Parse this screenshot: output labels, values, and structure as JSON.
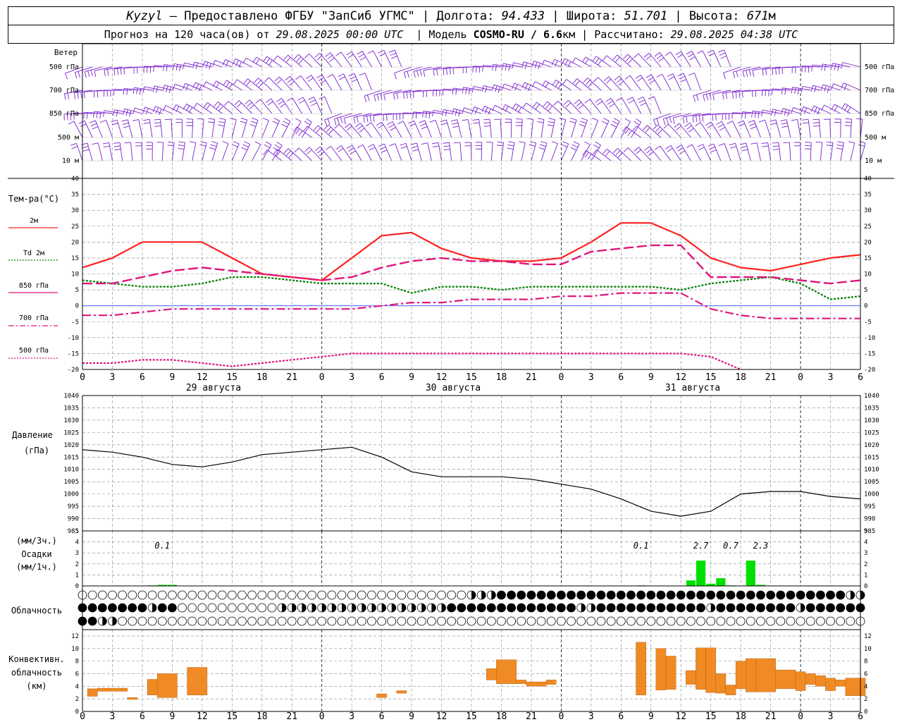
{
  "header": {
    "station": "Kyzyl",
    "sep": "–",
    "provider": "Предоставлено ФГБУ \"ЗапСиб УГМС\"",
    "lon_label": "Долгота:",
    "lon": "94.433",
    "lat_label": "Широта:",
    "lat": "51.701",
    "alt_label": "Высота:",
    "alt": "671",
    "alt_unit": "м",
    "forecast_label": "Прогноз на 120 часа(ов) от",
    "forecast_from": "29.08.2025 00:00 UTC",
    "model_label": "Модель",
    "model": "COSMO-RU / 6.6",
    "model_unit": "км",
    "calc_label": "Рассчитано:",
    "calc_time": "29.08.2025 04:38 UTC"
  },
  "wind_panel": {
    "title": "Ветер",
    "levels": [
      "500 гПа",
      "700 гПа",
      "850 гПа",
      "500 м",
      "10 м"
    ]
  },
  "temp_panel": {
    "title": "Тем-ра(°C)",
    "legend": [
      {
        "label": "2м",
        "color": "#ff2020",
        "style": "solid"
      },
      {
        "label": "Td  2м",
        "color": "#008000",
        "style": "dotted"
      },
      {
        "label": "850 гПа",
        "color": "#e0157e",
        "style": "dash"
      },
      {
        "label": "700 гПа",
        "color": "#e0157e",
        "style": "dashdot"
      },
      {
        "label": "500 гПа",
        "color": "#e0157e",
        "style": "dot"
      }
    ]
  },
  "pressure_panel": {
    "title": "Давление",
    "unit": "(гПа)"
  },
  "precip_panel": {
    "unit1": "(мм/3ч.)",
    "title": "Осадки",
    "unit2": "(мм/1ч.)"
  },
  "cloud_panel": {
    "title": "Облачность"
  },
  "conv_panel": {
    "title1": "Конвективн.",
    "title2": "облачность",
    "unit": "(км)"
  },
  "day_labels": [
    "29 августа",
    "30 августа",
    "31 августа"
  ],
  "x_tick_labels": [
    "0",
    "3",
    "6",
    "9",
    "12",
    "15",
    "18",
    "21",
    "0",
    "3",
    "6",
    "9",
    "12",
    "15",
    "18",
    "21",
    "0",
    "3",
    "6",
    "9",
    "12",
    "15",
    "18",
    "21",
    "0",
    "3",
    "6"
  ],
  "colors": {
    "wind": "#7a1fd0",
    "temp2m": "#ff2020",
    "dew": "#008000",
    "levels": "#e0157e",
    "precip": "#00e000",
    "conv": "#f08a24",
    "zero": "#3050ff"
  },
  "chart_data": [
    {
      "type": "line",
      "panel": "temperature",
      "ylim": [
        -20,
        40
      ],
      "x": [
        0,
        3,
        6,
        9,
        12,
        15,
        18,
        21,
        24,
        27,
        30,
        33,
        36,
        39,
        42,
        45,
        48,
        51,
        54,
        57,
        60,
        63,
        66,
        69,
        72,
        75,
        78
      ],
      "series": [
        {
          "name": "2м",
          "values": [
            12,
            15,
            20,
            20,
            20,
            15,
            10,
            9,
            8,
            15,
            22,
            23,
            18,
            15,
            14,
            14,
            15,
            20,
            26,
            26,
            22,
            15,
            12,
            11,
            13,
            15,
            16
          ]
        },
        {
          "name": "Td  2м",
          "values": [
            8,
            7,
            6,
            6,
            7,
            9,
            9,
            8,
            7,
            7,
            7,
            4,
            6,
            6,
            5,
            6,
            6,
            6,
            6,
            6,
            5,
            7,
            8,
            9,
            7,
            2,
            3
          ]
        },
        {
          "name": "850 гПа",
          "values": [
            7,
            7,
            9,
            11,
            12,
            11,
            10,
            9,
            8,
            9,
            12,
            14,
            15,
            14,
            14,
            13,
            13,
            17,
            18,
            19,
            19,
            9,
            9,
            9,
            8,
            7,
            8
          ]
        },
        {
          "name": "700 гПа",
          "values": [
            -3,
            -3,
            -2,
            -1,
            -1,
            -1,
            -1,
            -1,
            -1,
            -1,
            0,
            1,
            1,
            2,
            2,
            2,
            3,
            3,
            4,
            4,
            4,
            -1,
            -3,
            -4,
            -4,
            -4,
            -4
          ]
        },
        {
          "name": "500 гПа",
          "values": [
            -18,
            -18,
            -17,
            -17,
            -18,
            -19,
            -18,
            -17,
            -16,
            -15,
            -15,
            -15,
            -15,
            -15,
            -15,
            -15,
            -15,
            -15,
            -15,
            -15,
            -15,
            -16,
            -20,
            null,
            null,
            null,
            null
          ]
        }
      ]
    },
    {
      "type": "line",
      "panel": "pressure",
      "ylim": [
        985,
        1040
      ],
      "x": [
        0,
        3,
        6,
        9,
        12,
        15,
        18,
        21,
        24,
        27,
        30,
        33,
        36,
        39,
        42,
        45,
        48,
        51,
        54,
        57,
        60,
        63,
        66,
        69,
        72,
        75,
        78
      ],
      "series": [
        {
          "name": "",
          "values": [
            1018,
            1017,
            1015,
            1012,
            1011,
            1013,
            1016,
            1017,
            1018,
            1019,
            1015,
            1009,
            1007,
            1007,
            1007,
            1006,
            1004,
            1002,
            998,
            993,
            991,
            993,
            1000,
            1001,
            1001,
            999,
            998
          ]
        }
      ]
    },
    {
      "type": "bar",
      "panel": "precipitation",
      "ylim": [
        0,
        5
      ],
      "annotations": [
        {
          "x": 8,
          "text": "0.1"
        },
        {
          "x": 56,
          "text": "0.1"
        },
        {
          "x": 62,
          "text": "2.7"
        },
        {
          "x": 65,
          "text": "0.7"
        },
        {
          "x": 68,
          "text": "2.3"
        }
      ],
      "bars": [
        {
          "x": 7,
          "value": 0.05
        },
        {
          "x": 8,
          "value": 0.1
        },
        {
          "x": 9,
          "value": 0.1
        },
        {
          "x": 56,
          "value": 0.05
        },
        {
          "x": 61,
          "value": 0.5
        },
        {
          "x": 62,
          "value": 2.3
        },
        {
          "x": 63,
          "value": 0.2
        },
        {
          "x": 64,
          "value": 0.7
        },
        {
          "x": 65,
          "value": 0.05
        },
        {
          "x": 67,
          "value": 2.3
        },
        {
          "x": 68,
          "value": 0.1
        }
      ]
    },
    {
      "type": "bar",
      "panel": "convective-cloud",
      "ylim": [
        0,
        13
      ],
      "bars": [
        {
          "x0": 0.5,
          "x1": 1.5,
          "lo": 2.4,
          "hi": 3.6
        },
        {
          "x0": 1.5,
          "x1": 4.5,
          "lo": 3.2,
          "hi": 3.7
        },
        {
          "x0": 4.5,
          "x1": 5.5,
          "lo": 1.9,
          "hi": 2.2
        },
        {
          "x0": 6.5,
          "x1": 7.5,
          "lo": 2.6,
          "hi": 5.1
        },
        {
          "x0": 7.5,
          "x1": 9.5,
          "lo": 2.2,
          "hi": 6.0
        },
        {
          "x0": 10.5,
          "x1": 12.5,
          "lo": 2.6,
          "hi": 7.0
        },
        {
          "x0": 29.5,
          "x1": 30.5,
          "lo": 2.2,
          "hi": 2.8
        },
        {
          "x0": 31.5,
          "x1": 32.5,
          "lo": 2.9,
          "hi": 3.3
        },
        {
          "x0": 40.5,
          "x1": 41.5,
          "lo": 5.0,
          "hi": 6.8
        },
        {
          "x0": 41.5,
          "x1": 43.5,
          "lo": 4.4,
          "hi": 8.2
        },
        {
          "x0": 43.5,
          "x1": 44.5,
          "lo": 4.4,
          "hi": 5.0
        },
        {
          "x0": 44.5,
          "x1": 46.5,
          "lo": 4.0,
          "hi": 4.7
        },
        {
          "x0": 46.5,
          "x1": 47.5,
          "lo": 4.3,
          "hi": 5.0
        },
        {
          "x0": 55.5,
          "x1": 56.5,
          "lo": 2.6,
          "hi": 11.0
        },
        {
          "x0": 57.5,
          "x1": 58.5,
          "lo": 3.4,
          "hi": 10.0
        },
        {
          "x0": 58.5,
          "x1": 59.5,
          "lo": 3.5,
          "hi": 8.8
        },
        {
          "x0": 60.5,
          "x1": 61.5,
          "lo": 4.3,
          "hi": 6.5
        },
        {
          "x0": 61.5,
          "x1": 62.5,
          "lo": 3.5,
          "hi": 10.1
        },
        {
          "x0": 62.5,
          "x1": 63.5,
          "lo": 3.0,
          "hi": 10.1
        },
        {
          "x0": 63.5,
          "x1": 64.5,
          "lo": 2.9,
          "hi": 6.0
        },
        {
          "x0": 64.5,
          "x1": 65.5,
          "lo": 2.6,
          "hi": 4.2
        },
        {
          "x0": 65.5,
          "x1": 66.5,
          "lo": 3.6,
          "hi": 8.0
        },
        {
          "x0": 66.5,
          "x1": 67.5,
          "lo": 3.1,
          "hi": 8.4
        },
        {
          "x0": 67.5,
          "x1": 69.5,
          "lo": 3.1,
          "hi": 8.4
        },
        {
          "x0": 69.5,
          "x1": 71.5,
          "lo": 3.6,
          "hi": 6.6
        },
        {
          "x0": 71.5,
          "x1": 72.5,
          "lo": 3.3,
          "hi": 6.3
        },
        {
          "x0": 72.5,
          "x1": 73.5,
          "lo": 4.3,
          "hi": 6.0
        },
        {
          "x0": 73.5,
          "x1": 74.5,
          "lo": 4.0,
          "hi": 5.7
        },
        {
          "x0": 74.5,
          "x1": 75.5,
          "lo": 3.3,
          "hi": 5.3
        },
        {
          "x0": 75.5,
          "x1": 76.5,
          "lo": 4.0,
          "hi": 5.0
        },
        {
          "x0": 76.5,
          "x1": 78.5,
          "lo": 2.5,
          "hi": 5.3
        }
      ]
    }
  ]
}
